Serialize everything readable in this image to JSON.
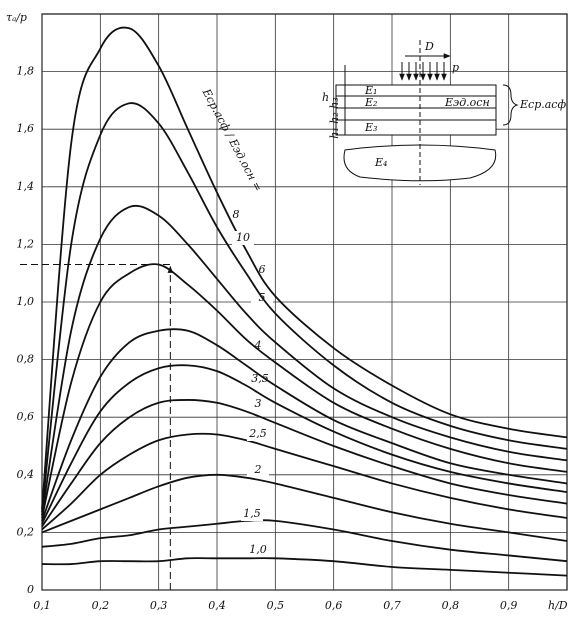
{
  "chart_data": {
    "type": "line",
    "y_label": "τₐ/p",
    "x_label": "h/D",
    "annotation": "Eср.асф / Eэд.осн =",
    "x": [
      0.1,
      0.15,
      0.2,
      0.25,
      0.3,
      0.35,
      0.4,
      0.45,
      0.5,
      0.6,
      0.7,
      0.8,
      0.9,
      1.0
    ],
    "series": [
      {
        "name": "1,0",
        "color": "#111111",
        "values": [
          0.09,
          0.09,
          0.1,
          0.1,
          0.1,
          0.11,
          0.11,
          0.11,
          0.11,
          0.1,
          0.08,
          0.07,
          0.06,
          0.05
        ]
      },
      {
        "name": "1,5",
        "color": "#111111",
        "values": [
          0.15,
          0.16,
          0.18,
          0.19,
          0.21,
          0.22,
          0.23,
          0.24,
          0.24,
          0.21,
          0.17,
          0.14,
          0.12,
          0.1
        ]
      },
      {
        "name": "2",
        "color": "#111111",
        "values": [
          0.2,
          0.24,
          0.28,
          0.32,
          0.36,
          0.39,
          0.4,
          0.39,
          0.37,
          0.32,
          0.27,
          0.23,
          0.2,
          0.17
        ]
      },
      {
        "name": "2,5",
        "color": "#111111",
        "values": [
          0.21,
          0.3,
          0.4,
          0.47,
          0.52,
          0.54,
          0.54,
          0.52,
          0.49,
          0.43,
          0.37,
          0.32,
          0.28,
          0.25
        ]
      },
      {
        "name": "3",
        "color": "#111111",
        "values": [
          0.22,
          0.37,
          0.51,
          0.6,
          0.65,
          0.66,
          0.65,
          0.62,
          0.58,
          0.5,
          0.43,
          0.37,
          0.33,
          0.3
        ]
      },
      {
        "name": "3,5",
        "color": "#111111",
        "values": [
          0.23,
          0.44,
          0.62,
          0.72,
          0.77,
          0.78,
          0.76,
          0.71,
          0.65,
          0.55,
          0.47,
          0.41,
          0.37,
          0.34
        ]
      },
      {
        "name": "4",
        "color": "#111111",
        "values": [
          0.24,
          0.52,
          0.74,
          0.86,
          0.9,
          0.9,
          0.85,
          0.78,
          0.71,
          0.59,
          0.51,
          0.44,
          0.4,
          0.37
        ]
      },
      {
        "name": "5",
        "color": "#111111",
        "values": [
          0.25,
          0.72,
          1.0,
          1.1,
          1.13,
          1.06,
          0.97,
          0.87,
          0.79,
          0.65,
          0.56,
          0.49,
          0.44,
          0.41
        ]
      },
      {
        "name": "6",
        "color": "#111111",
        "values": [
          0.26,
          0.9,
          1.22,
          1.33,
          1.3,
          1.2,
          1.08,
          0.96,
          0.86,
          0.7,
          0.6,
          0.53,
          0.48,
          0.45
        ]
      },
      {
        "name": "8",
        "color": "#111111",
        "values": [
          0.27,
          1.2,
          1.58,
          1.69,
          1.62,
          1.45,
          1.26,
          1.1,
          0.96,
          0.78,
          0.65,
          0.57,
          0.52,
          0.49
        ]
      },
      {
        "name": "10",
        "color": "#111111",
        "values": [
          0.28,
          1.55,
          1.88,
          1.95,
          1.82,
          1.6,
          1.38,
          1.18,
          1.02,
          0.84,
          0.71,
          0.61,
          0.56,
          0.53
        ]
      }
    ],
    "guide": {
      "x": 0.32,
      "y": 1.13
    },
    "xlim": [
      0.1,
      1.0
    ],
    "ylim": [
      0,
      2.0
    ],
    "xticks": [
      {
        "value": 0.1,
        "label": "0,1"
      },
      {
        "value": 0.2,
        "label": "0,2"
      },
      {
        "value": 0.3,
        "label": "0,3"
      },
      {
        "value": 0.4,
        "label": "0,4"
      },
      {
        "value": 0.5,
        "label": "0,5"
      },
      {
        "value": 0.6,
        "label": "0,6"
      },
      {
        "value": 0.7,
        "label": "0,7"
      },
      {
        "value": 0.8,
        "label": "0,8"
      },
      {
        "value": 0.9,
        "label": "0,9"
      }
    ],
    "yticks": [
      0,
      {
        "value": 0.2,
        "label": "0,2"
      },
      {
        "value": 0.4,
        "label": "0,4"
      },
      {
        "value": 0.6,
        "label": "0,6"
      },
      {
        "value": 0.8,
        "label": "0,8"
      },
      {
        "value": 1.0,
        "label": "1,0"
      },
      {
        "value": 1.2,
        "label": "1,2"
      },
      {
        "value": 1.4,
        "label": "1,4"
      },
      {
        "value": 1.6,
        "label": "1,6"
      },
      {
        "value": 1.8,
        "label": "1,8"
      }
    ],
    "grid": true,
    "inset": {
      "D": "D",
      "p": "p",
      "h": "h",
      "h_layers": "h₁ h₂ h₃",
      "E1": "E₁",
      "E2": "E₂",
      "E3": "E₃",
      "E4": "E₄",
      "E_asph": "Eср.асф",
      "E_base": "Eэд.осн"
    }
  }
}
